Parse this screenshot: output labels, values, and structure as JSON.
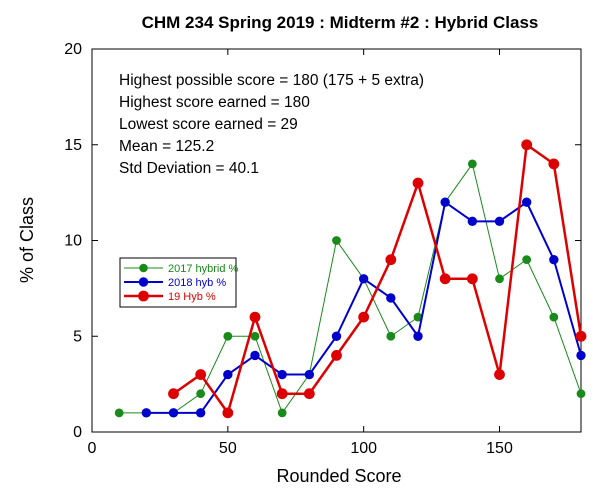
{
  "chart_data": {
    "type": "line",
    "title": "CHM 234 Spring 2019 : Midterm #2 : Hybrid Class",
    "xlabel": "Rounded Score",
    "ylabel": "% of Class",
    "xlim": [
      0,
      180
    ],
    "ylim": [
      0,
      20
    ],
    "xticks": [
      "0",
      "50",
      "100",
      "150"
    ],
    "yticks": [
      "0",
      "5",
      "10",
      "15",
      "20"
    ],
    "xtick_values": [
      0,
      50,
      100,
      150
    ],
    "ytick_values": [
      0,
      5,
      10,
      15,
      20
    ],
    "grid": false,
    "legend_position": "left-middle",
    "stats": [
      "Highest possible score = 180 (175 + 5 extra)",
      "Highest score earned = 180",
      "Lowest score earned = 29",
      "Mean = 125.2",
      "Std Deviation = 40.1"
    ],
    "series": [
      {
        "name": "2017 hybrid %",
        "color": "#1a8a1a",
        "line_weight": "thin",
        "x": [
          10,
          20,
          30,
          40,
          50,
          60,
          70,
          80,
          90,
          100,
          110,
          120,
          130,
          140,
          150,
          160,
          170,
          180
        ],
        "y": [
          1,
          1,
          1,
          2,
          5,
          5,
          1,
          3,
          10,
          8,
          5,
          6,
          12,
          14,
          8,
          9,
          6,
          2
        ]
      },
      {
        "name": "2018 hyb %",
        "color": "#0000cc",
        "line_weight": "medium",
        "x": [
          20,
          30,
          40,
          50,
          60,
          70,
          80,
          90,
          100,
          110,
          120,
          130,
          140,
          150,
          160,
          170,
          180
        ],
        "y": [
          1,
          1,
          1,
          3,
          4,
          3,
          3,
          5,
          8,
          7,
          5,
          12,
          11,
          11,
          12,
          9,
          4
        ]
      },
      {
        "name": "19 Hyb %",
        "color": "#dd0000",
        "line_weight": "thick",
        "x": [
          30,
          40,
          50,
          60,
          70,
          80,
          90,
          100,
          110,
          120,
          130,
          140,
          150,
          160,
          170,
          180
        ],
        "y": [
          2,
          3,
          1,
          6,
          2,
          2,
          4,
          6,
          9,
          13,
          8,
          8,
          3,
          15,
          14,
          5
        ]
      }
    ]
  }
}
